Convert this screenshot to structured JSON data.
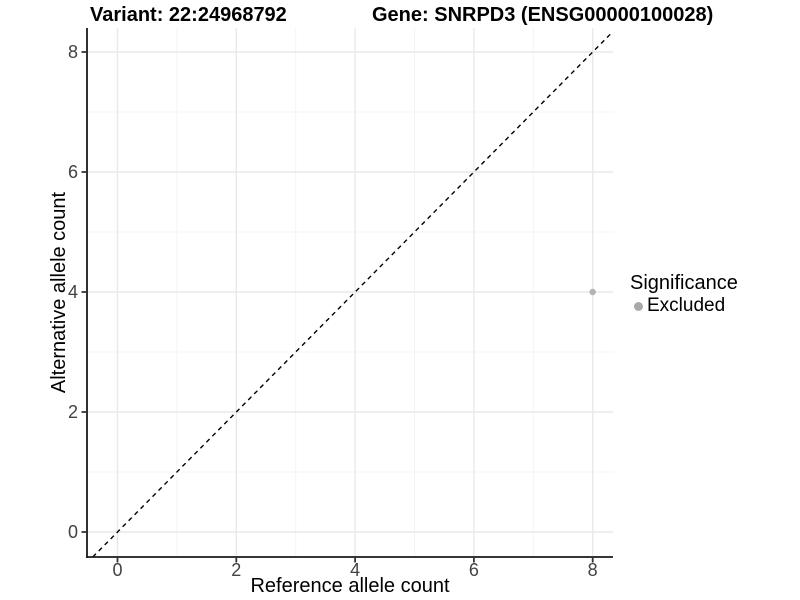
{
  "chart_data": {
    "type": "scatter",
    "title_left": "Variant: 22:24968792",
    "title_right": "Gene: SNRPD3 (ENSG00000100028)",
    "xlabel": "Reference allele count",
    "ylabel": "Alternative allele count",
    "xlim": [
      -0.5,
      8.35
    ],
    "ylim": [
      -0.42,
      8.4
    ],
    "xticks": [
      0,
      2,
      4,
      6,
      8
    ],
    "yticks": [
      0,
      2,
      4,
      6,
      8
    ],
    "xticks_minor": [
      1,
      3,
      5,
      7
    ],
    "yticks_minor": [
      1,
      3,
      5,
      7
    ],
    "grid": true,
    "series": [
      {
        "name": "Excluded",
        "color": "#b3b3b3",
        "points": [
          {
            "x": 8,
            "y": 4
          }
        ]
      }
    ],
    "reference_line": {
      "type": "identity",
      "slope": 1,
      "intercept": 0,
      "style": "dashed",
      "color": "#000000"
    },
    "legend": {
      "title": "Significance",
      "position": "right",
      "entries": [
        {
          "label": "Excluded",
          "color": "#a9a9a9"
        }
      ]
    },
    "colors": {
      "grid_major": "#e9e9e9",
      "grid_minor": "#f4f4f4",
      "axis_line": "#1a1a1a",
      "tick_mark": "#333333",
      "tick_text": "#424242"
    }
  }
}
